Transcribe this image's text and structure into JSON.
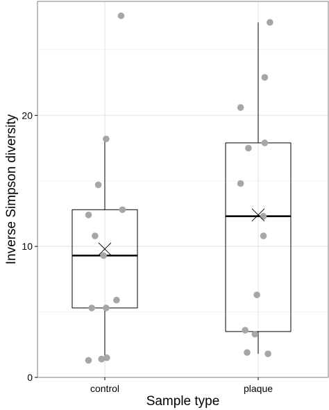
{
  "chart_data": {
    "type": "box",
    "xlabel": "Sample type",
    "ylabel": "Inverse Simpson diversity",
    "categories": [
      "control",
      "plaque"
    ],
    "ylim": [
      0,
      28.7
    ],
    "yticks": [
      0,
      10,
      20
    ],
    "grid": true,
    "boxes": [
      {
        "category": "control",
        "whisker_low": 1.3,
        "q1": 5.3,
        "median": 9.3,
        "q3": 12.8,
        "whisker_high": 18.2,
        "mean": 9.8,
        "points": [
          27.6,
          18.2,
          14.7,
          12.8,
          12.4,
          10.8,
          9.3,
          5.9,
          5.3,
          5.3,
          1.5,
          1.4,
          1.3
        ],
        "jitter": [
          0.25,
          0.02,
          -0.1,
          0.27,
          -0.25,
          -0.15,
          -0.02,
          0.18,
          -0.2,
          0.02,
          0.03,
          -0.05,
          -0.25
        ]
      },
      {
        "category": "plaque",
        "whisker_low": 1.8,
        "q1": 3.5,
        "median": 12.3,
        "q3": 17.9,
        "whisker_high": 27.1,
        "mean": 12.4,
        "points": [
          27.1,
          22.9,
          20.6,
          17.9,
          17.5,
          14.8,
          12.3,
          10.8,
          6.3,
          3.6,
          3.3,
          1.9,
          1.8
        ],
        "jitter": [
          0.18,
          0.1,
          -0.27,
          0.1,
          -0.15,
          -0.27,
          0.08,
          0.08,
          -0.02,
          -0.2,
          -0.05,
          -0.17,
          0.15
        ]
      }
    ]
  }
}
